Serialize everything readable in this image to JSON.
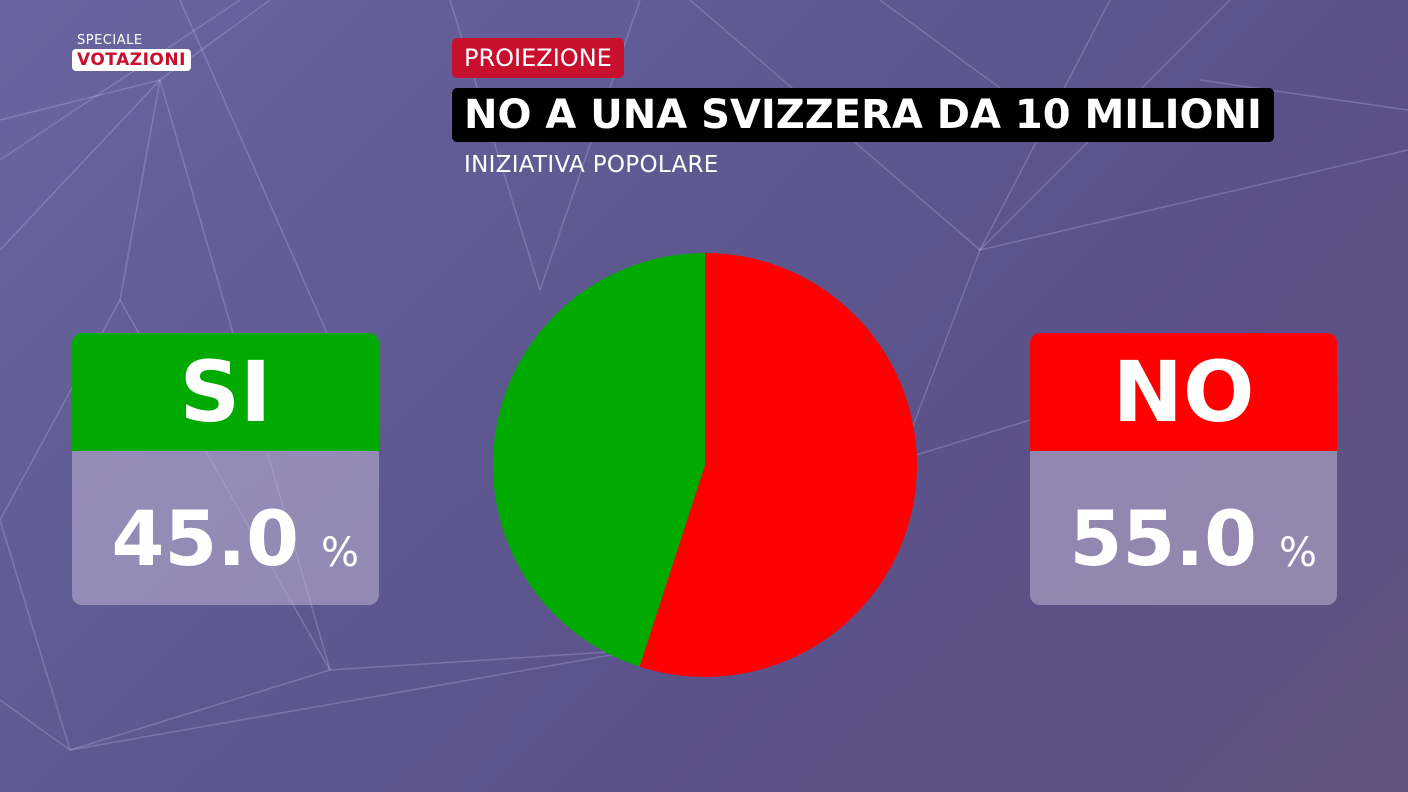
{
  "logo": {
    "small": "SPECIALE",
    "big": "VOTAZIONI"
  },
  "tag": "PROIEZIONE",
  "title": "NO A UNA SVIZZERA DA 10 MILIONI",
  "subtitle": "INIZIATIVA POPOLARE",
  "si": {
    "label": "SI",
    "value": "45.0",
    "unit": "%",
    "color": "#00aa00"
  },
  "no": {
    "label": "NO",
    "value": "55.0",
    "unit": "%",
    "color": "#ff0000"
  },
  "chart_data": {
    "type": "pie",
    "categories": [
      "SI",
      "NO"
    ],
    "values": [
      45.0,
      55.0
    ],
    "colors": [
      "#00aa00",
      "#ff0000"
    ],
    "title": "NO A UNA SVIZZERA DA 10 MILIONI"
  }
}
